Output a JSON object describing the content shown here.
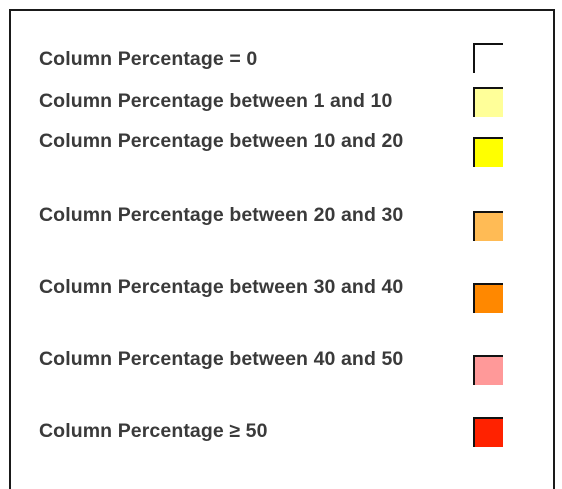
{
  "legend": {
    "items": [
      {
        "label": "Column Percentage = 0",
        "color": "#ffffff"
      },
      {
        "label": "Column Percentage between 1 and 10",
        "color": "#ffff99"
      },
      {
        "label": "Column Percentage between 10 and 20",
        "color": "#ffff00"
      },
      {
        "label": "Column Percentage between 20 and 30",
        "color": "#ffbb55"
      },
      {
        "label": "Column Percentage between 30 and 40",
        "color": "#ff8800"
      },
      {
        "label": "Column Percentage between 40 and 50",
        "color": "#ff9999"
      },
      {
        "label": "Column Percentage ≥ 50",
        "color": "#ff2200"
      }
    ]
  }
}
